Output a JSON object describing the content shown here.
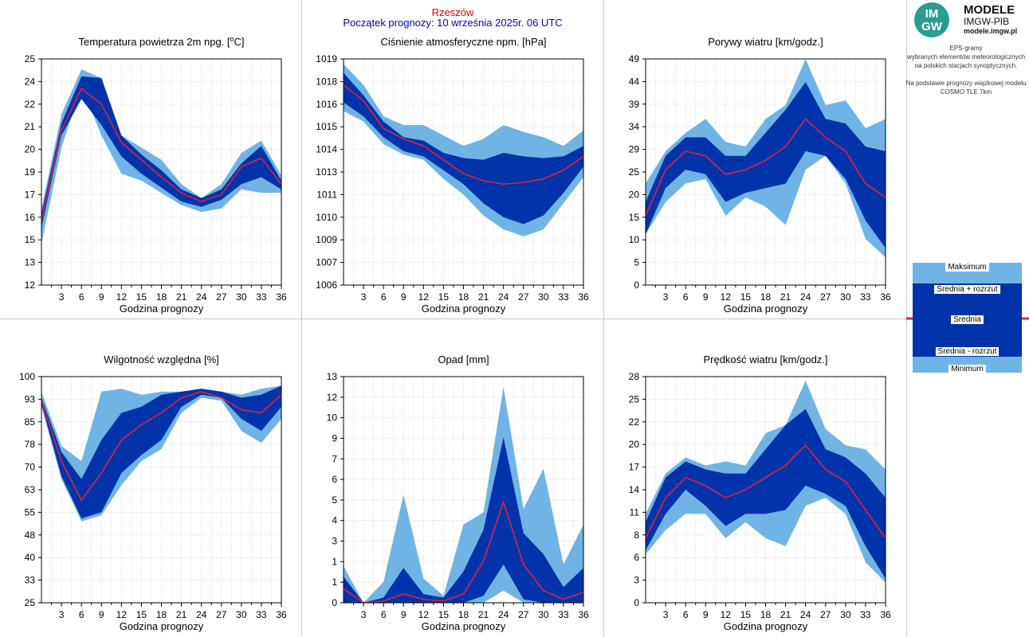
{
  "header": {
    "city": "Rzeszów",
    "subtitle": "Początek prognozy: 10 września 2025r. 06 UTC"
  },
  "logo": {
    "mark_top": "IM",
    "mark_bottom": "GW",
    "title": "MODELE",
    "org": "IMGW-PIB",
    "url": "modele.imgw.pl"
  },
  "info": {
    "lines": [
      "EPS-gramy",
      "wybranych elementów meteorologicznych",
      "na polskich stacjach  synoptycznych.",
      "",
      "Na podstawie prognozy wiązkowej modelu",
      "COSMO TLE 7km"
    ]
  },
  "legend": {
    "labels": [
      "Maksimum",
      "Średnia + rozrzut",
      "Średnia",
      "Średnia - rozrzut",
      "Minimum"
    ]
  },
  "colors": {
    "outer_band": "#6fb4e4",
    "inner_band": "#0033aa",
    "mean_line": "#e8203a",
    "divider": "#c8c8c8",
    "grid": "#bdbdbd"
  },
  "chart_data": [
    {
      "id": "temperature",
      "type": "area",
      "title": "Temperatura powietrza 2m npg. [oC]",
      "xlabel": "Godzina prognozy",
      "x": [
        0,
        3,
        6,
        9,
        12,
        15,
        18,
        21,
        24,
        27,
        30,
        33,
        36
      ],
      "xticks": [
        3,
        6,
        9,
        12,
        15,
        18,
        21,
        24,
        27,
        30,
        33,
        36
      ],
      "ylim": [
        12,
        25
      ],
      "yticks": [
        "12",
        "13",
        "15",
        "16",
        "17",
        "19",
        "20",
        "21",
        "22",
        "24",
        "25"
      ],
      "series": [
        {
          "values": [
            14.4,
            19.9,
            23.4,
            20.6,
            18.4,
            18.0,
            17.3,
            16.6,
            16.2,
            16.4,
            17.5,
            17.3,
            17.3
          ]
        },
        {
          "values": [
            15.3,
            20.6,
            22.7,
            21.2,
            19.4,
            18.4,
            17.6,
            16.8,
            16.5,
            16.9,
            17.8,
            18.2,
            17.5
          ]
        },
        {
          "values": [
            15.7,
            20.9,
            23.3,
            22.4,
            20.2,
            19.2,
            18.2,
            17.3,
            16.8,
            17.2,
            18.8,
            19.3,
            17.8
          ]
        },
        {
          "values": [
            16.1,
            21.3,
            24.0,
            23.9,
            20.6,
            19.5,
            18.6,
            17.5,
            17.0,
            17.5,
            19.0,
            20.0,
            18.0
          ]
        },
        {
          "values": [
            16.4,
            21.8,
            24.4,
            23.9,
            20.6,
            19.9,
            19.2,
            17.8,
            17.0,
            17.8,
            19.6,
            20.3,
            18.3
          ]
        }
      ]
    },
    {
      "id": "pressure",
      "type": "area",
      "title": "Ciśnienie atmosferyczne npm. [hPa]",
      "xlabel": "Godzina prognozy",
      "x": [
        0,
        3,
        6,
        9,
        12,
        15,
        18,
        21,
        24,
        27,
        30,
        33,
        36
      ],
      "xticks": [
        3,
        6,
        9,
        12,
        15,
        18,
        21,
        24,
        27,
        30,
        33,
        36
      ],
      "ylim": [
        1006,
        1019
      ],
      "yticks": [
        "1006",
        "1007",
        "1009",
        "1010",
        "1011",
        "1013",
        "1014",
        "1015",
        "1016",
        "1018",
        "1019"
      ],
      "series": [
        {
          "values": [
            1016.0,
            1015.4,
            1014.1,
            1013.5,
            1013.2,
            1012.1,
            1011.2,
            1010.0,
            1009.2,
            1008.8,
            1009.2,
            1010.7,
            1012.2
          ]
        },
        {
          "values": [
            1016.5,
            1015.7,
            1014.5,
            1013.7,
            1013.4,
            1012.6,
            1011.8,
            1010.7,
            1009.9,
            1009.5,
            1010.0,
            1011.3,
            1012.8
          ]
        },
        {
          "values": [
            1017.5,
            1016.6,
            1015.0,
            1014.4,
            1014.0,
            1013.2,
            1012.4,
            1012.0,
            1011.8,
            1011.9,
            1012.1,
            1012.6,
            1013.4
          ]
        },
        {
          "values": [
            1018.2,
            1016.9,
            1015.4,
            1014.5,
            1014.3,
            1013.6,
            1013.3,
            1013.2,
            1013.6,
            1013.4,
            1013.3,
            1013.4,
            1014.0
          ]
        },
        {
          "values": [
            1018.7,
            1017.5,
            1015.7,
            1015.2,
            1015.2,
            1014.6,
            1014.0,
            1014.4,
            1015.2,
            1014.8,
            1014.5,
            1014.0,
            1014.9
          ]
        }
      ]
    },
    {
      "id": "gusts",
      "type": "area",
      "title": "Porywy wiatru [km/godz.]",
      "xlabel": "Godzina prognozy",
      "x": [
        0,
        3,
        6,
        9,
        12,
        15,
        18,
        21,
        24,
        27,
        30,
        33,
        36
      ],
      "xticks": [
        3,
        6,
        9,
        12,
        15,
        18,
        21,
        24,
        27,
        30,
        33,
        36
      ],
      "ylim": [
        0,
        49
      ],
      "yticks": [
        "0",
        "5",
        "10",
        "15",
        "20",
        "25",
        "29",
        "34",
        "39",
        "44",
        "49"
      ],
      "series": [
        {
          "values": [
            11,
            18,
            22,
            23,
            15,
            19,
            17,
            13,
            25,
            28,
            22,
            10,
            6
          ]
        },
        {
          "values": [
            11,
            21,
            25,
            24,
            18,
            20,
            21,
            22,
            29,
            28,
            23,
            14,
            8
          ]
        },
        {
          "values": [
            15,
            25,
            29,
            28,
            24,
            25,
            27,
            30,
            36,
            32,
            29,
            22,
            19
          ]
        },
        {
          "values": [
            18,
            28,
            32,
            32,
            28,
            28,
            33,
            38,
            44,
            36,
            35,
            30,
            29
          ]
        },
        {
          "values": [
            22,
            29,
            33,
            36,
            31,
            30,
            36,
            39,
            49,
            39,
            40,
            34,
            36
          ]
        }
      ]
    },
    {
      "id": "humidity",
      "type": "area",
      "title": "Wilgotność względna [%]",
      "xlabel": "Godzina prognozy",
      "x": [
        0,
        3,
        6,
        9,
        12,
        15,
        18,
        21,
        24,
        27,
        30,
        33,
        36
      ],
      "xticks": [
        3,
        6,
        9,
        12,
        15,
        18,
        21,
        24,
        27,
        30,
        33,
        36
      ],
      "ylim": [
        25,
        100
      ],
      "yticks": [
        "25",
        "33",
        "40",
        "48",
        "55",
        "63",
        "70",
        "78",
        "85",
        "93",
        "100"
      ],
      "series": [
        {
          "values": [
            90,
            66,
            52,
            54,
            64,
            72,
            76,
            88,
            93,
            92,
            82,
            78,
            86
          ]
        },
        {
          "values": [
            91,
            67,
            53,
            55,
            68,
            74,
            79,
            90,
            94,
            93,
            86,
            82,
            90
          ]
        },
        {
          "values": [
            92,
            72,
            59,
            68,
            79,
            84,
            88,
            93,
            95,
            93,
            89,
            88,
            94
          ]
        },
        {
          "values": [
            93,
            75,
            66,
            79,
            88,
            90,
            94,
            95,
            96,
            95,
            93,
            94,
            97
          ]
        },
        {
          "values": [
            95,
            77,
            72,
            95,
            96,
            94,
            95,
            95,
            96,
            95,
            94,
            96,
            97
          ]
        }
      ]
    },
    {
      "id": "precip",
      "type": "area",
      "title": "Opad [mm]",
      "xlabel": "Godzina prognozy",
      "x": [
        0,
        3,
        6,
        9,
        12,
        15,
        18,
        21,
        24,
        27,
        30,
        33,
        36
      ],
      "xticks": [
        3,
        6,
        9,
        12,
        15,
        18,
        21,
        24,
        27,
        30,
        33,
        36
      ],
      "ylim": [
        0,
        13
      ],
      "yticks": [
        "0",
        "1",
        "1",
        "3",
        "4",
        "5",
        "6",
        "7",
        "9",
        "10",
        "12",
        "13"
      ],
      "series": [
        {
          "values": [
            0,
            0,
            0,
            0,
            0,
            0,
            0,
            0,
            0.7,
            0,
            0,
            0,
            0
          ]
        },
        {
          "values": [
            0,
            0,
            0,
            0,
            0,
            0,
            0,
            0.4,
            2.2,
            0.2,
            0,
            0,
            0
          ]
        },
        {
          "values": [
            0.8,
            0,
            0.1,
            0.5,
            0.2,
            0.1,
            0.5,
            2.4,
            5.8,
            2.2,
            0.7,
            0.2,
            0.6
          ]
        },
        {
          "values": [
            1.5,
            0,
            0.3,
            2.0,
            0.5,
            0.3,
            1.8,
            4.2,
            9.5,
            4.0,
            2.8,
            0.9,
            2.0
          ]
        },
        {
          "values": [
            2.1,
            0,
            1.2,
            6.2,
            1.4,
            0.4,
            4.5,
            5.2,
            12.4,
            5.4,
            7.7,
            2.2,
            4.5
          ]
        }
      ]
    },
    {
      "id": "wind",
      "type": "area",
      "title": "Prędkość wiatru [km/godz.]",
      "xlabel": "Godzina prognozy",
      "x": [
        0,
        3,
        6,
        9,
        12,
        15,
        18,
        21,
        24,
        27,
        30,
        33,
        36
      ],
      "xticks": [
        3,
        6,
        9,
        12,
        15,
        18,
        21,
        24,
        27,
        30,
        33,
        36
      ],
      "ylim": [
        0,
        28
      ],
      "yticks": [
        "0",
        "3",
        "6",
        "8",
        "11",
        "14",
        "17",
        "20",
        "22",
        "25",
        "28"
      ],
      "series": [
        {
          "values": [
            6,
            9,
            11,
            11,
            8,
            10,
            8,
            7,
            12,
            13,
            11,
            5,
            2.5
          ]
        },
        {
          "values": [
            6.5,
            11,
            14,
            12,
            9.5,
            11,
            11,
            11.5,
            14.5,
            13.5,
            12,
            7,
            3
          ]
        },
        {
          "values": [
            8,
            13,
            15.5,
            14.5,
            13,
            14,
            15.5,
            17,
            19.5,
            16.5,
            15,
            11.5,
            8
          ]
        },
        {
          "values": [
            10,
            15.5,
            17.5,
            16.5,
            16,
            16,
            19,
            22,
            24,
            19,
            18,
            16,
            13
          ]
        },
        {
          "values": [
            11,
            16,
            18,
            17,
            17.5,
            17,
            21,
            22,
            27.5,
            21.5,
            19.5,
            19,
            16.5
          ]
        }
      ]
    }
  ]
}
